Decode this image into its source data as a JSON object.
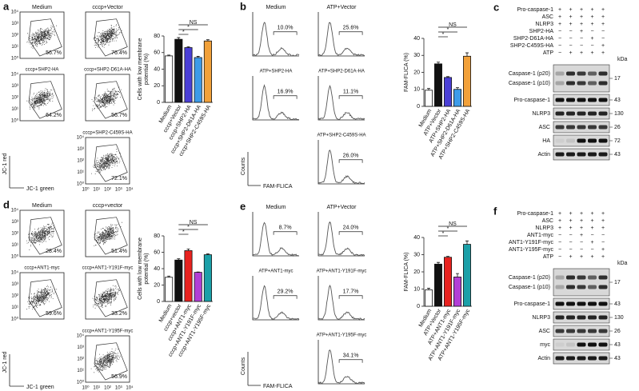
{
  "flow_panels": [
    {
      "label": "a",
      "y_label": "JC-1 red",
      "x_label": "JC-1 green",
      "tick_labels": [
        "10⁰",
        "10¹",
        "10²",
        "10³",
        "10⁴"
      ],
      "plots": [
        {
          "title": "Medium",
          "pct": "56.7%"
        },
        {
          "title": "cccp+Vector",
          "pct": "76.4%"
        },
        {
          "title": "cccp+SHP2-HA",
          "pct": "64.2%",
          "color": "#4a3fd6"
        },
        {
          "title": "cccp+SHP2-D61A-HA",
          "pct": "56.7%",
          "color": "#3d9be9"
        },
        {
          "title": "cccp+SHP2-C459S-HA",
          "pct": "72.1%",
          "color": "#f2a13a"
        }
      ]
    },
    {
      "label": "d",
      "y_label": "JC-1 red",
      "x_label": "JC-1 green",
      "tick_labels": [
        "10⁰",
        "10¹",
        "10²",
        "10³",
        "10⁴"
      ],
      "plots": [
        {
          "title": "Medium",
          "pct": "28.4%"
        },
        {
          "title": "cccp+vector",
          "pct": "51.4%"
        },
        {
          "title": "cccp+ANT1-myc",
          "pct": "59.6%",
          "color": "#e8221f"
        },
        {
          "title": "cccp+ANT1-Y191F-myc",
          "pct": "33.2%",
          "color": "#b23fd6"
        },
        {
          "title": "cccp+ANT1-Y195F-myc",
          "pct": "56.9%",
          "color": "#1ba0a8"
        }
      ]
    }
  ],
  "histogram_panels": [
    {
      "label": "b",
      "y_label": "Counts",
      "x_label": "FAM-FLICA",
      "plots": [
        {
          "title": "Medium",
          "pct": "10.0%"
        },
        {
          "title": "ATP+Vector",
          "pct": "25.6%"
        },
        {
          "title": "ATP+SHP2-HA",
          "pct": "16.9%",
          "color": "#4a3fd6"
        },
        {
          "title": "ATP+SHP2-D61A-HA",
          "pct": "11.1%",
          "color": "#3d9be9"
        },
        {
          "title": "ATP+SHP2-C459S-HA",
          "pct": "26.0%",
          "color": "#f2a13a"
        }
      ]
    },
    {
      "label": "e",
      "y_label": "Counts",
      "x_label": "FAM-FLICA",
      "plots": [
        {
          "title": "Medium",
          "pct": "8.7%"
        },
        {
          "title": "ATP+Vector",
          "pct": "24.0%"
        },
        {
          "title": "ATP+ANT1-myc",
          "pct": "29.2%",
          "color": "#e8221f"
        },
        {
          "title": "ATP+ANT1-Y191F-myc",
          "pct": "17.7%",
          "color": "#b23fd6"
        },
        {
          "title": "ATP+ANT1-Y195F-myc",
          "pct": "34.1%",
          "color": "#1ba0a8"
        }
      ]
    }
  ],
  "blot_panels": [
    {
      "label": "c",
      "kda_label": "kDa",
      "conditions": [
        {
          "label": "Pro-caspase-1",
          "signs": [
            "+",
            "+",
            "+",
            "+",
            "+"
          ]
        },
        {
          "label": "ASC",
          "signs": [
            "+",
            "+",
            "+",
            "+",
            "+"
          ]
        },
        {
          "label": "NLRP3",
          "signs": [
            "+",
            "+",
            "+",
            "+",
            "+"
          ]
        },
        {
          "label": "SHP2-HA",
          "signs": [
            "−",
            "−",
            "+",
            "−",
            "−"
          ]
        },
        {
          "label": "SHP2-D61A-HA",
          "signs": [
            "−",
            "−",
            "−",
            "+",
            "−"
          ]
        },
        {
          "label": "SHP2-C459S-HA",
          "signs": [
            "−",
            "−",
            "−",
            "−",
            "+"
          ]
        },
        {
          "label": "ATP",
          "signs": [
            "−",
            "+",
            "+",
            "+",
            "+"
          ]
        }
      ],
      "bands": [
        {
          "labels": [
            "Caspase-1 (p20)",
            "Caspase-1 (p10)"
          ],
          "kda": 17
        },
        {
          "labels": [
            "Pro-caspase-1"
          ],
          "kda": 43
        },
        {
          "labels": [
            "NLRP3"
          ],
          "kda": 130
        },
        {
          "labels": [
            "ASC"
          ],
          "kda": 26
        },
        {
          "labels": [
            "HA"
          ],
          "kda": 72
        },
        {
          "labels": [
            "Actin"
          ],
          "kda": 43
        }
      ]
    },
    {
      "label": "f",
      "kda_label": "kDa",
      "conditions": [
        {
          "label": "Pro-caspase-1",
          "signs": [
            "+",
            "+",
            "+",
            "+",
            "+"
          ]
        },
        {
          "label": "ASC",
          "signs": [
            "+",
            "+",
            "+",
            "+",
            "+"
          ]
        },
        {
          "label": "NLRP3",
          "signs": [
            "+",
            "+",
            "+",
            "+",
            "+"
          ]
        },
        {
          "label": "ANT1-myc",
          "signs": [
            "−",
            "−",
            "+",
            "−",
            "−"
          ]
        },
        {
          "label": "ANT1-Y191F-myc",
          "signs": [
            "−",
            "−",
            "−",
            "+",
            "−"
          ]
        },
        {
          "label": "ANT1-Y195F-myc",
          "signs": [
            "−",
            "−",
            "−",
            "−",
            "+"
          ]
        },
        {
          "label": "ATP",
          "signs": [
            "−",
            "+",
            "+",
            "+",
            "+"
          ]
        }
      ],
      "bands": [
        {
          "labels": [
            "Caspase-1 (p20)",
            "Caspase-1 (p10)"
          ],
          "kda": 17
        },
        {
          "labels": [
            "Pro-caspase-1"
          ],
          "kda": 43
        },
        {
          "labels": [
            "NLRP3"
          ],
          "kda": 130
        },
        {
          "labels": [
            "ASC"
          ],
          "kda": 26
        },
        {
          "labels": [
            "myc"
          ],
          "kda": 43
        },
        {
          "labels": [
            "Actin"
          ],
          "kda": 43
        }
      ]
    }
  ],
  "chart_data": [
    {
      "type": "bar",
      "y_label": [
        "Cells with low membrane",
        "potential (%)"
      ],
      "categories": [
        "Medium",
        "cccp+Vector",
        "cccp+SHP2-HA",
        "cccp+SHP2-D61A-HA",
        "cccp+SHP2-C459S-HA"
      ],
      "values": [
        56,
        76,
        66,
        54,
        74
      ],
      "errors": [
        1,
        2,
        1,
        1.5,
        1.5
      ],
      "colors": [
        "#ffffff",
        "#111111",
        "#4a3fd6",
        "#3d9be9",
        "#f2a13a"
      ],
      "ylim": [
        0,
        80
      ],
      "yticks": [
        0,
        20,
        40,
        60,
        80
      ],
      "annotations": [
        "NS",
        "*",
        "*"
      ]
    },
    {
      "type": "bar",
      "y_label": [
        "FAM-FLICA (%)"
      ],
      "categories": [
        "Medium",
        "ATP+Vector",
        "ATP+SHP2-HA",
        "ATP+SHP2-D61A-HA",
        "ATP+SHP2-C459S-HA"
      ],
      "values": [
        9.5,
        25,
        17,
        10,
        29.5
      ],
      "errors": [
        1,
        1,
        0.5,
        1,
        2
      ],
      "colors": [
        "#ffffff",
        "#111111",
        "#4a3fd6",
        "#3d9be9",
        "#f2a13a"
      ],
      "ylim": [
        0,
        40
      ],
      "yticks": [
        0,
        10,
        20,
        30,
        40
      ],
      "annotations": [
        "NS",
        "*",
        "*"
      ]
    },
    {
      "type": "bar",
      "y_label": [
        "Cells with low membrane",
        "potential (%)"
      ],
      "categories": [
        "Medium",
        "cccp+vector",
        "cccp+ANT1-myc",
        "cccp+ANT1-Y191F-myc",
        "cccp+ANT1-Y195F-myc"
      ],
      "values": [
        29.5,
        50.5,
        62,
        35.5,
        57
      ],
      "errors": [
        1.5,
        1.5,
        2,
        0.5,
        1
      ],
      "colors": [
        "#ffffff",
        "#111111",
        "#e8221f",
        "#b23fd6",
        "#1ba0a8"
      ],
      "ylim": [
        0,
        80
      ],
      "yticks": [
        0,
        20,
        40,
        60,
        80
      ],
      "annotations": [
        "NS",
        "*",
        "*"
      ]
    },
    {
      "type": "bar",
      "y_label": [
        "FAM-FLICA (%)"
      ],
      "categories": [
        "Medium",
        "ATP+Vector",
        "ATP+ANT1-myc",
        "ATP+ANT1-Y191F-myc",
        "ATP+ANT1-Y195F-myc"
      ],
      "values": [
        9.5,
        24.5,
        28.5,
        17,
        36
      ],
      "errors": [
        1,
        1,
        0.5,
        2,
        2
      ],
      "colors": [
        "#ffffff",
        "#111111",
        "#e8221f",
        "#b23fd6",
        "#1ba0a8"
      ],
      "ylim": [
        0,
        40
      ],
      "yticks": [
        0,
        10,
        20,
        30,
        40
      ],
      "annotations": [
        "NS",
        "*",
        "*"
      ]
    }
  ]
}
